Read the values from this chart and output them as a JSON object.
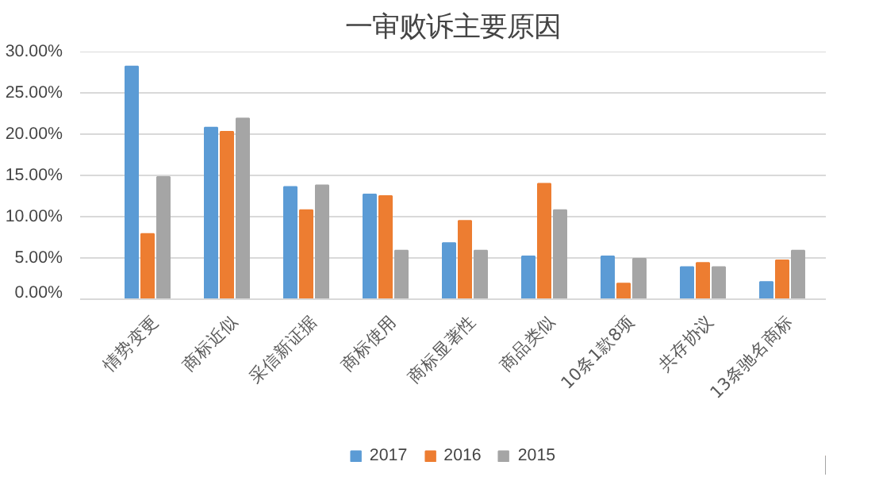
{
  "chart_data": {
    "type": "bar",
    "title": "一审败诉主要原因",
    "categories": [
      "情势变更",
      "商标近似",
      "采信新证据",
      "商标使用",
      "商标显著性",
      "商品类似",
      "10条1款8项",
      "共存协议",
      "13条驰名商标"
    ],
    "series": [
      {
        "name": "2017",
        "color": "#5b9bd5",
        "values": [
          28.2,
          20.8,
          13.6,
          12.7,
          6.8,
          5.2,
          5.2,
          3.9,
          2.1
        ]
      },
      {
        "name": "2016",
        "color": "#ed7d31",
        "values": [
          7.9,
          20.3,
          10.8,
          12.5,
          9.5,
          14.0,
          1.9,
          4.4,
          4.7
        ]
      },
      {
        "name": "2015",
        "color": "#a5a5a5",
        "values": [
          14.8,
          21.9,
          13.8,
          5.9,
          5.9,
          10.8,
          4.9,
          3.9,
          5.9
        ]
      }
    ],
    "ylim": [
      0,
      30
    ],
    "yticks": [
      {
        "value": 0,
        "label": "0.00%"
      },
      {
        "value": 5,
        "label": "5.00%"
      },
      {
        "value": 10,
        "label": "10.00%"
      },
      {
        "value": 15,
        "label": "15.00%"
      },
      {
        "value": 20,
        "label": "20.00%"
      },
      {
        "value": 25,
        "label": "25.00%"
      },
      {
        "value": 30,
        "label": "30.00%"
      }
    ],
    "grid": "y",
    "legend": "bottom"
  }
}
